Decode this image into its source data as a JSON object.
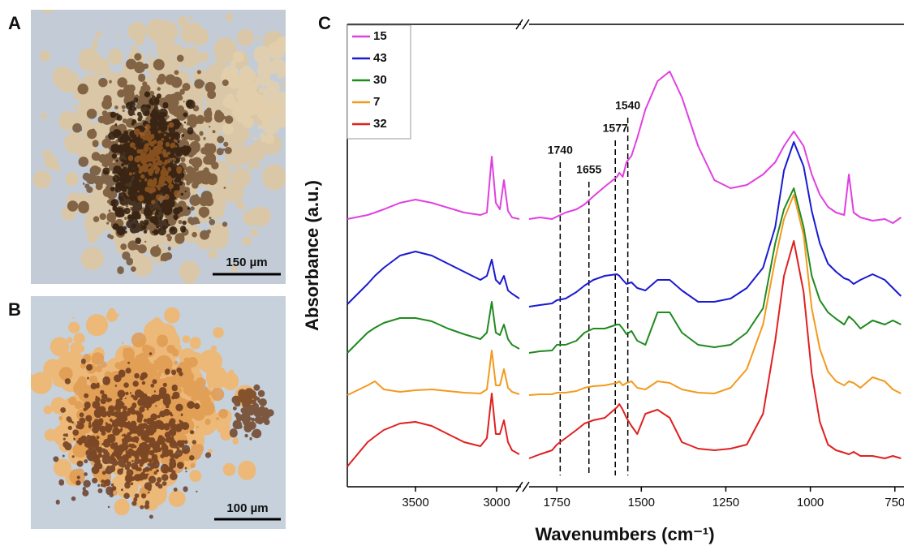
{
  "panels": [
    {
      "label": "A",
      "scale_bar": "150 µm"
    },
    {
      "label": "B",
      "scale_bar": "100 µm"
    }
  ],
  "chart_data": {
    "type": "line",
    "panel_label": "C",
    "xlabel": "Wavenumbers (cm⁻¹)",
    "ylabel": "Absorbance (a.u.)",
    "xlim": [
      [
        3920,
        2860
      ],
      [
        1832,
        723
      ]
    ],
    "xticks": [
      3500,
      3000,
      1750,
      1500,
      1250,
      1000,
      750
    ],
    "ylim": [
      0,
      570
    ],
    "legend": "upper left",
    "markers": [
      1740,
      1655,
      1577,
      1540
    ],
    "x": [
      3920,
      3795,
      3750,
      3695,
      3595,
      3500,
      3400,
      3300,
      3200,
      3100,
      3060,
      3030,
      3005,
      2980,
      2955,
      2930,
      2905,
      2860,
      1832,
      1800,
      1764,
      1750,
      1724,
      1692,
      1668,
      1642,
      1608,
      1572,
      1565,
      1555,
      1544,
      1529,
      1512,
      1488,
      1452,
      1416,
      1380,
      1332,
      1284,
      1236,
      1188,
      1140,
      1104,
      1078,
      1049,
      1020,
      996,
      972,
      948,
      924,
      900,
      886,
      872,
      852,
      816,
      780,
      756,
      732
    ],
    "series": [
      {
        "name": "15",
        "color": "#e040e0",
        "values": [
          330,
          335,
          338,
          342,
          350,
          354,
          350,
          344,
          338,
          335,
          338,
          407,
          350,
          342,
          378,
          340,
          332,
          330,
          330,
          332,
          330,
          333,
          338,
          342,
          348,
          358,
          370,
          382,
          387,
          382,
          400,
          408,
          430,
          465,
          500,
          512,
          480,
          420,
          378,
          368,
          372,
          385,
          400,
          420,
          438,
          420,
          385,
          360,
          345,
          338,
          335,
          385,
          338,
          332,
          328,
          330,
          325,
          332
        ]
      },
      {
        "name": "43",
        "color": "#1a1ad0",
        "values": [
          225,
          250,
          260,
          270,
          285,
          290,
          285,
          275,
          265,
          255,
          260,
          280,
          255,
          250,
          260,
          242,
          238,
          232,
          222,
          224,
          226,
          230,
          232,
          240,
          248,
          255,
          260,
          262,
          260,
          255,
          250,
          252,
          245,
          242,
          255,
          255,
          242,
          228,
          228,
          232,
          245,
          270,
          320,
          390,
          425,
          395,
          340,
          300,
          275,
          265,
          257,
          255,
          250,
          255,
          262,
          255,
          245,
          235
        ]
      },
      {
        "name": "30",
        "color": "#1f8a1f",
        "values": [
          165,
          190,
          196,
          202,
          208,
          208,
          204,
          195,
          188,
          182,
          190,
          228,
          190,
          187,
          200,
          182,
          175,
          170,
          165,
          167,
          168,
          175,
          175,
          180,
          190,
          195,
          195,
          200,
          200,
          195,
          188,
          192,
          180,
          175,
          215,
          215,
          190,
          175,
          172,
          175,
          190,
          220,
          300,
          342,
          368,
          320,
          260,
          230,
          215,
          207,
          200,
          210,
          205,
          195,
          205,
          200,
          205,
          200
        ]
      },
      {
        "name": "7",
        "color": "#f39a1e",
        "values": [
          113,
          125,
          130,
          120,
          117,
          119,
          120,
          118,
          116,
          115,
          120,
          168,
          125,
          125,
          145,
          122,
          117,
          114,
          113,
          114,
          114,
          116,
          116,
          118,
          122,
          124,
          125,
          128,
          130,
          125,
          128,
          130,
          122,
          120,
          130,
          128,
          120,
          116,
          115,
          122,
          145,
          200,
          280,
          330,
          360,
          310,
          220,
          170,
          142,
          130,
          125,
          130,
          128,
          122,
          135,
          130,
          120,
          115
        ]
      },
      {
        "name": "32",
        "color": "#e02020",
        "values": [
          25,
          55,
          62,
          70,
          78,
          80,
          75,
          65,
          55,
          50,
          60,
          115,
          65,
          65,
          82,
          55,
          45,
          40,
          35,
          40,
          45,
          52,
          60,
          70,
          78,
          82,
          85,
          98,
          102,
          95,
          85,
          75,
          65,
          90,
          95,
          85,
          55,
          47,
          45,
          47,
          52,
          90,
          180,
          260,
          303,
          240,
          140,
          80,
          52,
          45,
          42,
          40,
          43,
          38,
          38,
          35,
          38,
          35
        ]
      }
    ]
  }
}
